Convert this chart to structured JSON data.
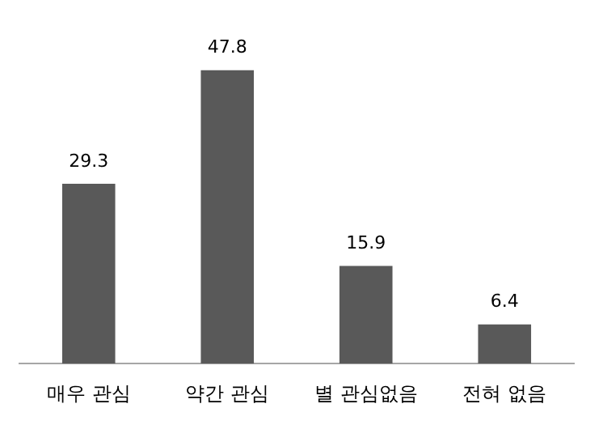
{
  "chart_data": {
    "type": "bar",
    "categories": [
      "매우 관심",
      "약간 관심",
      "별 관심없음",
      "전혀 없음"
    ],
    "values": [
      29.3,
      47.8,
      15.9,
      6.4
    ],
    "color": "#595959",
    "data_labels": true,
    "legend": false,
    "grid": false,
    "tick_labels": "x"
  }
}
